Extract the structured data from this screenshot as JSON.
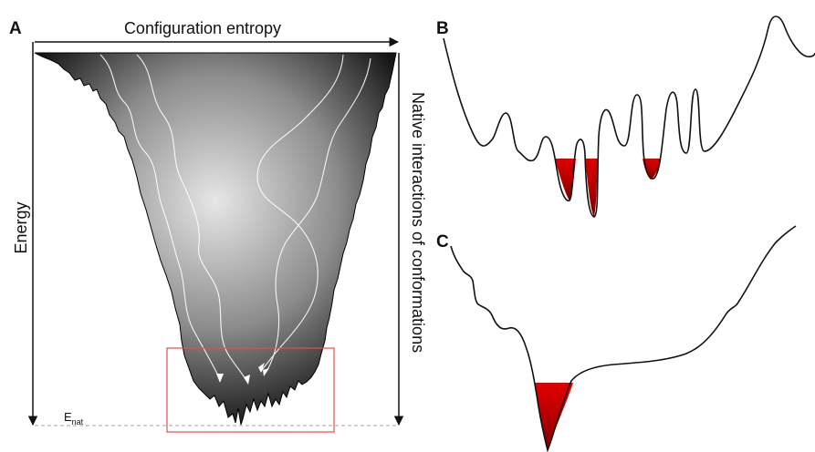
{
  "panels": {
    "a": {
      "letter": "A"
    },
    "b": {
      "letter": "B"
    },
    "c": {
      "letter": "C"
    }
  },
  "axes": {
    "configuration_entropy": "Configuration entropy",
    "energy": "Energy",
    "native_interactions": "Native interactions of conformations",
    "e_nat_main": "E",
    "e_nat_sub": "nat"
  },
  "colors": {
    "funnel_light": "#e6e6e6",
    "funnel_dark": "#151515",
    "highlight_box": "#e05050",
    "native_well_red": "#d40000",
    "native_well_dark": "#7a0000",
    "dashed_line": "#a0a0a0"
  }
}
